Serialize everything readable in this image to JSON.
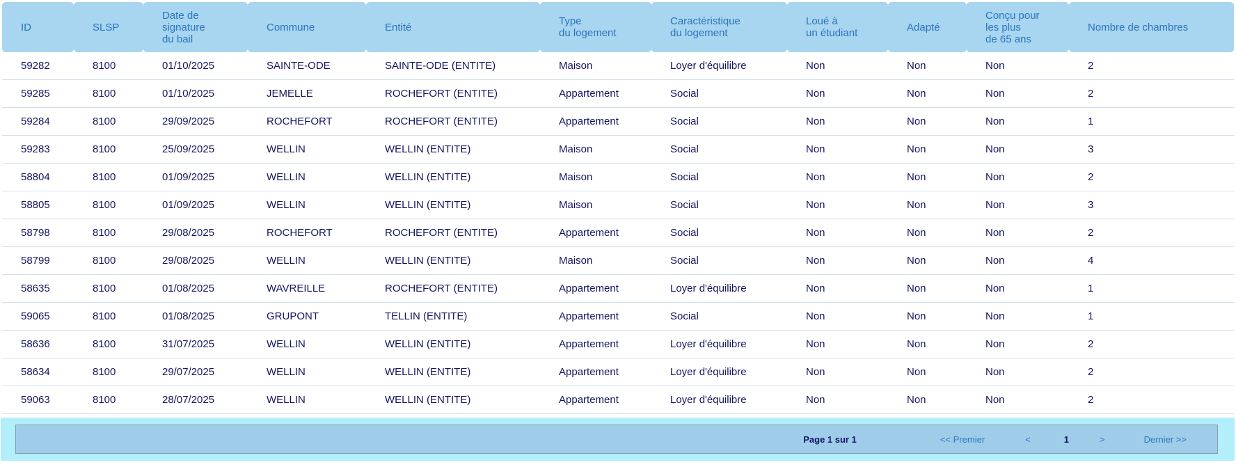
{
  "table": {
    "columns": [
      {
        "key": "id",
        "label": "ID"
      },
      {
        "key": "slsp",
        "label": "SLSP"
      },
      {
        "key": "date",
        "label": "Date de\nsignature\ndu bail"
      },
      {
        "key": "commune",
        "label": "Commune"
      },
      {
        "key": "entite",
        "label": "Entité"
      },
      {
        "key": "type",
        "label": "Type\ndu logement"
      },
      {
        "key": "caracteristique",
        "label": "Caractéristique\ndu logement"
      },
      {
        "key": "loue",
        "label": "Loué à\nun étudiant"
      },
      {
        "key": "adapte",
        "label": "Adapté"
      },
      {
        "key": "concu",
        "label": "Conçu pour\nles plus\nde 65 ans"
      },
      {
        "key": "chambres",
        "label": "Nombre de chambres"
      }
    ],
    "rows": [
      [
        "59282",
        "8100",
        "01/10/2025",
        "SAINTE-ODE",
        "SAINTE-ODE (ENTITE)",
        "Maison",
        "Loyer d'équilibre",
        "Non",
        "Non",
        "Non",
        "2"
      ],
      [
        "59285",
        "8100",
        "01/10/2025",
        "JEMELLE",
        "ROCHEFORT (ENTITE)",
        "Appartement",
        "Social",
        "Non",
        "Non",
        "Non",
        "2"
      ],
      [
        "59284",
        "8100",
        "29/09/2025",
        "ROCHEFORT",
        "ROCHEFORT (ENTITE)",
        "Appartement",
        "Social",
        "Non",
        "Non",
        "Non",
        "1"
      ],
      [
        "59283",
        "8100",
        "25/09/2025",
        "WELLIN",
        "WELLIN (ENTITE)",
        "Maison",
        "Social",
        "Non",
        "Non",
        "Non",
        "3"
      ],
      [
        "58804",
        "8100",
        "01/09/2025",
        "WELLIN",
        "WELLIN (ENTITE)",
        "Maison",
        "Social",
        "Non",
        "Non",
        "Non",
        "2"
      ],
      [
        "58805",
        "8100",
        "01/09/2025",
        "WELLIN",
        "WELLIN (ENTITE)",
        "Maison",
        "Social",
        "Non",
        "Non",
        "Non",
        "3"
      ],
      [
        "58798",
        "8100",
        "29/08/2025",
        "ROCHEFORT",
        "ROCHEFORT (ENTITE)",
        "Appartement",
        "Social",
        "Non",
        "Non",
        "Non",
        "2"
      ],
      [
        "58799",
        "8100",
        "29/08/2025",
        "WELLIN",
        "WELLIN (ENTITE)",
        "Maison",
        "Social",
        "Non",
        "Non",
        "Non",
        "4"
      ],
      [
        "58635",
        "8100",
        "01/08/2025",
        "WAVREILLE",
        "ROCHEFORT (ENTITE)",
        "Appartement",
        "Loyer d'équilibre",
        "Non",
        "Non",
        "Non",
        "1"
      ],
      [
        "59065",
        "8100",
        "01/08/2025",
        "GRUPONT",
        "TELLIN (ENTITE)",
        "Appartement",
        "Social",
        "Non",
        "Non",
        "Non",
        "1"
      ],
      [
        "58636",
        "8100",
        "31/07/2025",
        "WELLIN",
        "WELLIN (ENTITE)",
        "Appartement",
        "Loyer d'équilibre",
        "Non",
        "Non",
        "Non",
        "2"
      ],
      [
        "58634",
        "8100",
        "29/07/2025",
        "WELLIN",
        "WELLIN (ENTITE)",
        "Appartement",
        "Loyer d'équilibre",
        "Non",
        "Non",
        "Non",
        "2"
      ],
      [
        "59063",
        "8100",
        "28/07/2025",
        "WELLIN",
        "WELLIN (ENTITE)",
        "Appartement",
        "Loyer d'équilibre",
        "Non",
        "Non",
        "Non",
        "2"
      ]
    ]
  },
  "pagination": {
    "page_status": "Page 1 sur 1",
    "first_label": "<< Premier",
    "prev_label": "<",
    "current_page": "1",
    "next_label": ">",
    "last_label": "Dernier >>"
  },
  "colors": {
    "header_background": "#a8d5ef",
    "header_text": "#2c74be",
    "body_text": "#14155f",
    "row_separator": "#d4dee8",
    "footer_outer_background": "#b3eefb",
    "footer_bar_background": "#9fcde9",
    "footer_bar_border": "#7e9fb5",
    "link_blue": "#2e76be"
  }
}
